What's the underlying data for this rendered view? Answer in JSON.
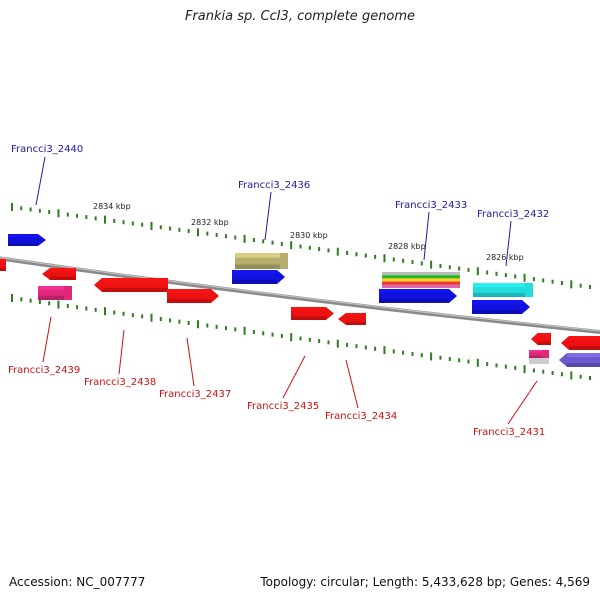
{
  "title": "Frankia sp. CcI3, complete genome",
  "accession_text": "Accession: NC_007777",
  "summary_text": "Topology: circular; Length: 5,433,628 bp; Genes: 4,569",
  "colors": {
    "backbone": "#8a8a8a",
    "tick": "#2e7d1e",
    "label_top": "#1a1aa6",
    "label_bottom": "#cc1111",
    "red": "#ee1111",
    "blue": "#1111dd",
    "magenta": "#e0287a",
    "olive": "#b5ae6e",
    "cyan": "#22dddd",
    "slate": "#6a5acd"
  },
  "ticks": [
    "2834 kbp",
    "2832 kbp",
    "2830 kbp",
    "2828 kbp",
    "2826 kbp"
  ],
  "top_labels": [
    "Francci3_2440",
    "Francci3_2436",
    "Francci3_2433",
    "Francci3_2432"
  ],
  "bottom_labels": [
    "Francci3_2439",
    "Francci3_2438",
    "Francci3_2437",
    "Francci3_2435",
    "Francci3_2434",
    "Francci3_2431"
  ]
}
